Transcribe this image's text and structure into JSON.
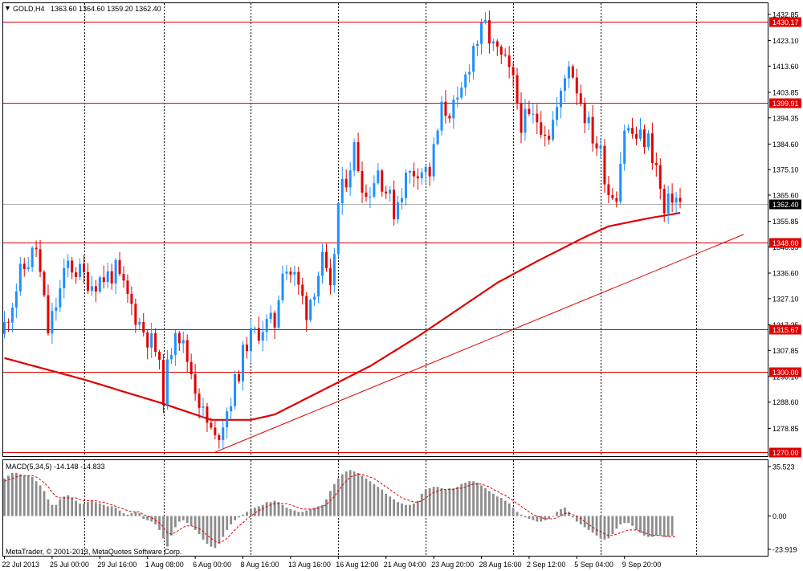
{
  "header": {
    "symbol": "GOLD,H4",
    "ohlc": "1363.60 1364.60 1359.20 1362.40"
  },
  "watermark": "MetaTrader, © 2001-2013, MetaQuotes Software Corp.",
  "colors": {
    "bull": "#1e90ff",
    "bear": "#e00000",
    "hline": "#e00000",
    "ma": "#e00000",
    "macd_hist": "#8c8c8c",
    "macd_signal": "#e00000",
    "grid": "#000000",
    "background": "#ffffff"
  },
  "chart_data": [
    {
      "type": "candlestick",
      "title": "GOLD,H4",
      "ylim": [
        1268.5,
        1437.0
      ],
      "y_ticks": [
        1432.85,
        1423.1,
        1413.6,
        1403.85,
        1394.35,
        1384.6,
        1375.1,
        1365.6,
        1355.85,
        1346.35,
        1336.6,
        1327.1,
        1317.35,
        1307.85,
        1298.1,
        1288.6,
        1278.85
      ],
      "x_labels": [
        "22 Jul 2013",
        "25 Jul 00:00",
        "29 Jul 16:00",
        "1 Aug 08:00",
        "6 Aug 00:00",
        "8 Aug 16:00",
        "13 Aug 16:00",
        "16 Aug 12:00",
        "21 Aug 04:00",
        "23 Aug 20:00",
        "28 Aug 16:00",
        "2 Sep 12:00",
        "5 Sep 04:00",
        "9 Sep 20:00"
      ],
      "x_label_bars": [
        0,
        12,
        24,
        36,
        48,
        60,
        72,
        84,
        96,
        108,
        120,
        132,
        144,
        156
      ],
      "vertical_grid_bars": [
        20,
        40,
        62,
        84,
        106,
        128,
        150,
        174
      ],
      "current_price": 1362.4,
      "horizontal_lines": [
        1430.17,
        1399.91,
        1348.0,
        1315.67,
        1300.0,
        1270.0
      ],
      "close_anchors": [
        [
          0,
          1317.0
        ],
        [
          4,
          1336.0
        ],
        [
          8,
          1346.0
        ],
        [
          11,
          1315.0
        ],
        [
          16,
          1340.0
        ],
        [
          22,
          1333.0
        ],
        [
          28,
          1337.0
        ],
        [
          34,
          1318.0
        ],
        [
          38,
          1308.0
        ],
        [
          40,
          1292.0
        ],
        [
          43,
          1318.0
        ],
        [
          47,
          1300.0
        ],
        [
          50,
          1284.0
        ],
        [
          53,
          1274.0
        ],
        [
          57,
          1290.0
        ],
        [
          61,
          1311.0
        ],
        [
          65,
          1317.0
        ],
        [
          68,
          1318.0
        ],
        [
          70,
          1340.0
        ],
        [
          73,
          1335.0
        ],
        [
          76,
          1323.0
        ],
        [
          80,
          1341.0
        ],
        [
          82,
          1328.0
        ],
        [
          84,
          1362.0
        ],
        [
          88,
          1383.0
        ],
        [
          91,
          1365.0
        ],
        [
          94,
          1375.0
        ],
        [
          98,
          1360.0
        ],
        [
          101,
          1372.0
        ],
        [
          104,
          1376.0
        ],
        [
          107,
          1374.0
        ],
        [
          110,
          1397.0
        ],
        [
          114,
          1398.0
        ],
        [
          118,
          1421.0
        ],
        [
          121,
          1428.0
        ],
        [
          123,
          1420.0
        ],
        [
          126,
          1414.0
        ],
        [
          128,
          1407.0
        ],
        [
          130,
          1393.0
        ],
        [
          134,
          1394.0
        ],
        [
          137,
          1389.0
        ],
        [
          140,
          1402.0
        ],
        [
          142,
          1416.0
        ],
        [
          145,
          1401.0
        ],
        [
          147,
          1391.0
        ],
        [
          150,
          1381.0
        ],
        [
          152,
          1367.0
        ],
        [
          154,
          1367.0
        ],
        [
          156,
          1391.0
        ],
        [
          159,
          1387.0
        ],
        [
          162,
          1386.0
        ],
        [
          164,
          1376.0
        ],
        [
          166,
          1358.0
        ],
        [
          168,
          1366.0
        ],
        [
          170,
          1362.4
        ]
      ],
      "moving_average_anchors": [
        [
          0,
          1305.0
        ],
        [
          20,
          1297.0
        ],
        [
          40,
          1288.0
        ],
        [
          52,
          1282.0
        ],
        [
          62,
          1282.0
        ],
        [
          68,
          1284.0
        ],
        [
          80,
          1293.0
        ],
        [
          92,
          1302.0
        ],
        [
          104,
          1313.0
        ],
        [
          116,
          1325.0
        ],
        [
          124,
          1333.0
        ],
        [
          134,
          1341.0
        ],
        [
          146,
          1350.0
        ],
        [
          152,
          1354.0
        ],
        [
          162,
          1357.0
        ],
        [
          170,
          1359.0
        ]
      ],
      "trendline": {
        "from": [
          53,
          1270.0
        ],
        "to": [
          186,
          1351.0
        ]
      }
    },
    {
      "type": "bar",
      "title": "MACD(5,34,5) -14.148 -14.833",
      "ylim": [
        -23.919,
        35.523
      ],
      "y_ticks": [
        35.523,
        0.0,
        -23.919
      ],
      "series": [
        {
          "name": "MACD(5,34,5)",
          "values": [
            27,
            29,
            31,
            31,
            30,
            29,
            29,
            28,
            25,
            22,
            18,
            12,
            8,
            8,
            12,
            14,
            15,
            13,
            11,
            9,
            9,
            10,
            11,
            10,
            9,
            8,
            7,
            7,
            6,
            4,
            2,
            1,
            2,
            3,
            2,
            -2,
            -3,
            -4,
            -6,
            -10,
            -16,
            -22,
            -14,
            -8,
            -4,
            -3,
            -5,
            -7,
            -10,
            -13,
            -17,
            -20,
            -22,
            -23,
            -20,
            -15,
            -10,
            -6,
            -3,
            -1,
            1,
            3,
            5,
            6,
            7,
            8,
            10,
            10,
            11,
            10,
            8,
            6,
            5,
            4,
            3,
            3,
            4,
            5,
            6,
            7,
            8,
            12,
            18,
            23,
            27,
            30,
            32,
            33,
            32,
            31,
            29,
            27,
            25,
            23,
            21,
            19,
            16,
            14,
            12,
            10,
            9,
            8,
            8,
            9,
            11,
            16,
            19,
            20,
            21,
            21,
            20,
            19,
            20,
            20,
            21,
            23,
            24,
            25,
            25,
            24,
            22,
            20,
            18,
            16,
            14,
            13,
            11,
            9,
            6,
            3,
            1,
            -1,
            -2,
            -3,
            -4,
            -4,
            -3,
            -2,
            0,
            3,
            5,
            6,
            3,
            -1,
            -4,
            -6,
            -8,
            -10,
            -12,
            -14,
            -16,
            -17,
            -16,
            -13,
            -9,
            -6,
            -5,
            -5,
            -7,
            -10,
            -12,
            -14,
            -15,
            -15,
            -14,
            -14,
            -15,
            -15,
            -14.148
          ]
        },
        {
          "name": "signal",
          "values": [
            25,
            26,
            27,
            28,
            29,
            29,
            29,
            29,
            28,
            26,
            24,
            21,
            17,
            14,
            13,
            13,
            13,
            13,
            13,
            12,
            11,
            11,
            11,
            11,
            10,
            10,
            9,
            8,
            7,
            6,
            5,
            4,
            3,
            3,
            3,
            1,
            0,
            -1,
            -3,
            -5,
            -8,
            -12,
            -13,
            -12,
            -10,
            -8,
            -7,
            -7,
            -8,
            -9,
            -11,
            -14,
            -16,
            -18,
            -19,
            -18,
            -16,
            -13,
            -10,
            -7,
            -5,
            -2,
            0,
            2,
            4,
            5,
            7,
            8,
            9,
            9,
            9,
            9,
            8,
            7,
            6,
            5,
            5,
            5,
            5,
            6,
            7,
            8,
            11,
            14,
            18,
            22,
            25,
            28,
            29,
            30,
            30,
            29,
            28,
            27,
            25,
            23,
            21,
            19,
            17,
            15,
            13,
            12,
            11,
            10,
            10,
            11,
            13,
            15,
            17,
            18,
            19,
            19,
            19,
            19,
            20,
            20,
            21,
            22,
            23,
            23,
            23,
            22,
            21,
            19,
            18,
            16,
            15,
            13,
            11,
            9,
            7,
            5,
            3,
            1,
            0,
            -1,
            -2,
            -2,
            -2,
            -1,
            0,
            2,
            2,
            1,
            0,
            -2,
            -4,
            -6,
            -8,
            -10,
            -11,
            -13,
            -14,
            -14,
            -13,
            -12,
            -11,
            -10,
            -10,
            -10,
            -11,
            -12,
            -13,
            -14,
            -14,
            -14,
            -14.5,
            -14.7,
            -14.8,
            -14.833
          ]
        }
      ]
    }
  ]
}
